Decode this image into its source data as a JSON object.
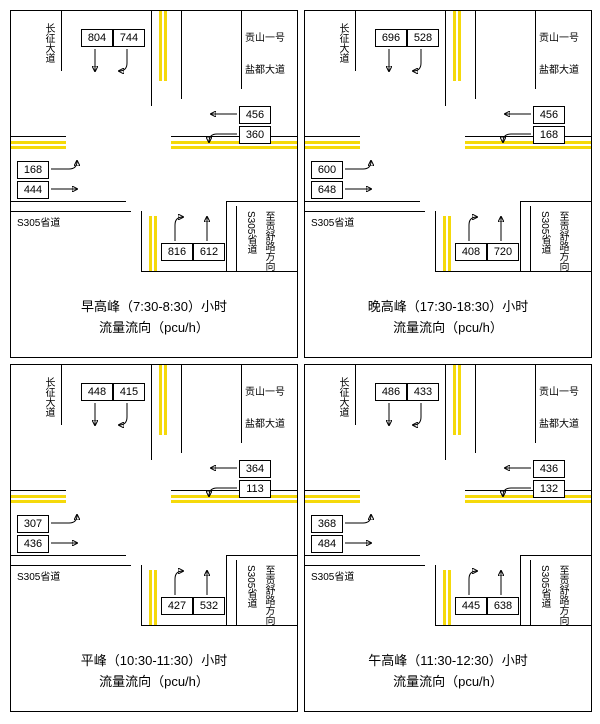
{
  "labels": {
    "road_nw": "长征大道",
    "road_ne_top": "贡山一号",
    "road_ne_bot": "盐都大道",
    "road_sw": "S305省道",
    "road_se_a": "S305省道",
    "road_se_b": "至贡舒路方向"
  },
  "panels": [
    {
      "title_a": "早高峰（7:30-8:30）小时",
      "title_b": "流量流向（pcu/h）",
      "n1": "804",
      "n2": "744",
      "e1": "456",
      "e2": "360",
      "w1": "168",
      "w2": "444",
      "s1": "816",
      "s2": "612"
    },
    {
      "title_a": "晚高峰（17:30-18:30）小时",
      "title_b": "流量流向（pcu/h）",
      "n1": "696",
      "n2": "528",
      "e1": "456",
      "e2": "168",
      "w1": "600",
      "w2": "648",
      "s1": "408",
      "s2": "720"
    },
    {
      "title_a": "平峰（10:30-11:30）小时",
      "title_b": "流量流向（pcu/h）",
      "n1": "448",
      "n2": "415",
      "e1": "364",
      "e2": "113",
      "w1": "307",
      "w2": "436",
      "s1": "427",
      "s2": "532"
    },
    {
      "title_a": "午高峰（11:30-12:30）小时",
      "title_b": "流量流向（pcu/h）",
      "n1": "486",
      "n2": "433",
      "e1": "436",
      "e2": "132",
      "w1": "368",
      "w2": "484",
      "s1": "445",
      "s2": "638"
    }
  ],
  "style": {
    "lane_color": "#f5d90a",
    "road_color": "#000000",
    "box_border": "#000000",
    "font_size_box": 11,
    "font_size_caption": 13
  }
}
